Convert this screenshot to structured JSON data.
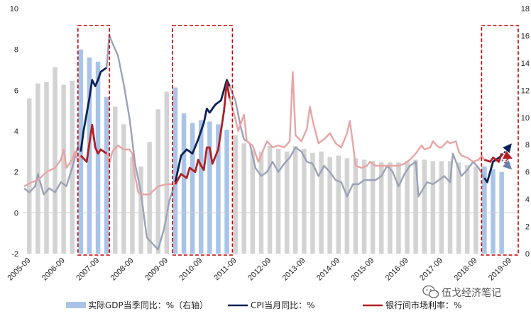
{
  "chart_data": {
    "type": "bar+line",
    "x_labels": [
      "2005-09",
      "2006-09",
      "2007-09",
      "2008-09",
      "2009-09",
      "2010-09",
      "2011-09",
      "2012-09",
      "2013-09",
      "2014-09",
      "2015-09",
      "2016-09",
      "2017-09",
      "2018-09",
      "2019-09"
    ],
    "x_range": [
      2005.6,
      2019.9
    ],
    "y_left": {
      "range": [
        -2,
        10
      ],
      "ticks": [
        -2,
        0,
        2,
        4,
        6,
        8,
        10
      ]
    },
    "y_right": {
      "range": [
        0,
        18
      ],
      "ticks": [
        0,
        2,
        4,
        6,
        8,
        10,
        12,
        14,
        16,
        18
      ]
    },
    "gdp_bars": {
      "name": "实际GDP当季同比：%（右轴）",
      "axis": "right",
      "x": [
        2005.75,
        2006.0,
        2006.25,
        2006.5,
        2006.75,
        2007.0,
        2007.25,
        2007.5,
        2007.75,
        2008.0,
        2008.25,
        2008.5,
        2008.75,
        2009.0,
        2009.25,
        2009.5,
        2009.75,
        2010.0,
        2010.25,
        2010.5,
        2010.75,
        2011.0,
        2011.25,
        2011.5,
        2011.75,
        2012.0,
        2012.25,
        2012.5,
        2012.75,
        2013.0,
        2013.25,
        2013.5,
        2013.75,
        2014.0,
        2014.25,
        2014.5,
        2014.75,
        2015.0,
        2015.25,
        2015.5,
        2015.75,
        2016.0,
        2016.25,
        2016.5,
        2016.75,
        2017.0,
        2017.25,
        2017.5,
        2017.75,
        2018.0,
        2018.25,
        2018.5,
        2018.75,
        2019.0,
        2019.25,
        2019.5
      ],
      "values": [
        11.4,
        12.5,
        12.6,
        13.7,
        12.4,
        12.7,
        15.0,
        14.4,
        14.1,
        11.5,
        10.8,
        9.5,
        7.1,
        6.4,
        8.2,
        10.6,
        11.9,
        12.2,
        10.3,
        9.6,
        9.8,
        9.7,
        9.5,
        9.1,
        8.7,
        8.1,
        7.6,
        7.5,
        7.9,
        7.7,
        7.5,
        7.9,
        7.7,
        7.4,
        7.5,
        7.1,
        7.2,
        7.0,
        7.0,
        6.9,
        6.8,
        6.7,
        6.7,
        6.7,
        6.8,
        6.9,
        6.9,
        6.8,
        6.8,
        6.8,
        6.7,
        6.5,
        6.4,
        6.4,
        6.2,
        6.0
      ]
    },
    "cpi_line": {
      "name": "CPI当月同比：%",
      "axis": "left",
      "points": [
        [
          2005.6,
          1.2
        ],
        [
          2005.75,
          1.0
        ],
        [
          2005.92,
          1.3
        ],
        [
          2006.0,
          1.9
        ],
        [
          2006.17,
          0.9
        ],
        [
          2006.33,
          1.2
        ],
        [
          2006.5,
          1.0
        ],
        [
          2006.67,
          1.5
        ],
        [
          2006.83,
          1.3
        ],
        [
          2007.0,
          2.2
        ],
        [
          2007.17,
          3.3
        ],
        [
          2007.25,
          3.0
        ],
        [
          2007.33,
          4.0
        ],
        [
          2007.5,
          5.6
        ],
        [
          2007.58,
          6.5
        ],
        [
          2007.67,
          6.2
        ],
        [
          2007.75,
          6.5
        ],
        [
          2007.83,
          6.9
        ],
        [
          2008.0,
          7.1
        ],
        [
          2008.08,
          8.7
        ],
        [
          2008.17,
          8.3
        ],
        [
          2008.33,
          7.7
        ],
        [
          2008.5,
          6.3
        ],
        [
          2008.67,
          4.6
        ],
        [
          2008.83,
          2.4
        ],
        [
          2009.0,
          1.0
        ],
        [
          2009.17,
          -1.2
        ],
        [
          2009.33,
          -1.5
        ],
        [
          2009.5,
          -1.8
        ],
        [
          2009.67,
          -0.8
        ],
        [
          2009.83,
          0.6
        ],
        [
          2010.0,
          1.5
        ],
        [
          2010.17,
          2.8
        ],
        [
          2010.33,
          3.1
        ],
        [
          2010.5,
          2.9
        ],
        [
          2010.67,
          3.6
        ],
        [
          2010.83,
          4.4
        ],
        [
          2010.92,
          5.1
        ],
        [
          2011.0,
          4.9
        ],
        [
          2011.17,
          5.3
        ],
        [
          2011.33,
          5.5
        ],
        [
          2011.5,
          6.5
        ],
        [
          2011.58,
          6.2
        ],
        [
          2011.75,
          5.5
        ],
        [
          2011.92,
          4.1
        ],
        [
          2012.0,
          3.6
        ],
        [
          2012.17,
          3.4
        ],
        [
          2012.33,
          2.2
        ],
        [
          2012.5,
          1.8
        ],
        [
          2012.67,
          2.0
        ],
        [
          2012.83,
          2.5
        ],
        [
          2013.0,
          2.0
        ],
        [
          2013.17,
          2.4
        ],
        [
          2013.33,
          2.7
        ],
        [
          2013.5,
          3.2
        ],
        [
          2013.67,
          3.0
        ],
        [
          2013.83,
          2.5
        ],
        [
          2014.0,
          2.4
        ],
        [
          2014.17,
          1.8
        ],
        [
          2014.33,
          2.3
        ],
        [
          2014.5,
          2.0
        ],
        [
          2014.67,
          1.6
        ],
        [
          2014.83,
          1.5
        ],
        [
          2015.0,
          0.8
        ],
        [
          2015.17,
          1.4
        ],
        [
          2015.33,
          1.4
        ],
        [
          2015.5,
          1.6
        ],
        [
          2015.67,
          1.6
        ],
        [
          2015.83,
          1.6
        ],
        [
          2016.0,
          1.8
        ],
        [
          2016.17,
          2.3
        ],
        [
          2016.33,
          2.0
        ],
        [
          2016.5,
          1.3
        ],
        [
          2016.67,
          1.9
        ],
        [
          2016.83,
          2.3
        ],
        [
          2017.0,
          2.5
        ],
        [
          2017.08,
          0.8
        ],
        [
          2017.33,
          1.5
        ],
        [
          2017.5,
          1.4
        ],
        [
          2017.67,
          1.6
        ],
        [
          2017.83,
          1.8
        ],
        [
          2018.0,
          1.5
        ],
        [
          2018.08,
          2.9
        ],
        [
          2018.33,
          1.8
        ],
        [
          2018.5,
          2.1
        ],
        [
          2018.67,
          2.5
        ],
        [
          2018.83,
          2.2
        ],
        [
          2019.0,
          1.7
        ],
        [
          2019.08,
          1.5
        ],
        [
          2019.25,
          2.5
        ],
        [
          2019.42,
          2.7
        ],
        [
          2019.5,
          2.8
        ]
      ]
    },
    "rate_line": {
      "name": "银行间市场利率：%",
      "axis": "left",
      "points": [
        [
          2005.6,
          1.3
        ],
        [
          2005.83,
          1.5
        ],
        [
          2006.0,
          1.6
        ],
        [
          2006.25,
          2.0
        ],
        [
          2006.5,
          2.2
        ],
        [
          2006.67,
          2.6
        ],
        [
          2006.75,
          3.1
        ],
        [
          2006.83,
          2.2
        ],
        [
          2007.0,
          2.6
        ],
        [
          2007.08,
          3.0
        ],
        [
          2007.17,
          2.5
        ],
        [
          2007.25,
          2.8
        ],
        [
          2007.42,
          2.5
        ],
        [
          2007.58,
          4.3
        ],
        [
          2007.67,
          3.2
        ],
        [
          2007.75,
          2.9
        ],
        [
          2007.83,
          3.1
        ],
        [
          2008.0,
          2.9
        ],
        [
          2008.08,
          2.4
        ],
        [
          2008.17,
          3.0
        ],
        [
          2008.33,
          3.3
        ],
        [
          2008.5,
          3.1
        ],
        [
          2008.67,
          3.1
        ],
        [
          2008.75,
          2.9
        ],
        [
          2008.83,
          1.8
        ],
        [
          2008.92,
          1.0
        ],
        [
          2009.0,
          0.9
        ],
        [
          2009.25,
          0.9
        ],
        [
          2009.5,
          1.3
        ],
        [
          2009.75,
          1.4
        ],
        [
          2009.83,
          1.4
        ],
        [
          2010.0,
          1.4
        ],
        [
          2010.17,
          1.9
        ],
        [
          2010.33,
          1.7
        ],
        [
          2010.42,
          2.2
        ],
        [
          2010.58,
          2.0
        ],
        [
          2010.67,
          2.6
        ],
        [
          2010.75,
          2.3
        ],
        [
          2010.83,
          2.1
        ],
        [
          2010.92,
          3.2
        ],
        [
          2011.0,
          3.2
        ],
        [
          2011.08,
          2.4
        ],
        [
          2011.25,
          3.1
        ],
        [
          2011.42,
          5.0
        ],
        [
          2011.5,
          6.4
        ],
        [
          2011.58,
          5.6
        ],
        [
          2011.75,
          4.6
        ],
        [
          2011.83,
          4.0
        ],
        [
          2012.0,
          4.8
        ],
        [
          2012.08,
          3.5
        ],
        [
          2012.25,
          3.3
        ],
        [
          2012.42,
          2.5
        ],
        [
          2012.67,
          3.5
        ],
        [
          2012.83,
          3.2
        ],
        [
          2013.0,
          3.3
        ],
        [
          2013.17,
          3.2
        ],
        [
          2013.33,
          3.5
        ],
        [
          2013.42,
          6.9
        ],
        [
          2013.5,
          3.8
        ],
        [
          2013.67,
          3.5
        ],
        [
          2013.83,
          4.1
        ],
        [
          2013.92,
          5.2
        ],
        [
          2014.0,
          4.5
        ],
        [
          2014.17,
          3.4
        ],
        [
          2014.33,
          3.6
        ],
        [
          2014.5,
          3.9
        ],
        [
          2014.67,
          3.4
        ],
        [
          2014.83,
          3.2
        ],
        [
          2015.0,
          3.9
        ],
        [
          2015.08,
          4.5
        ],
        [
          2015.17,
          3.4
        ],
        [
          2015.25,
          2.3
        ],
        [
          2015.42,
          2.2
        ],
        [
          2015.58,
          2.3
        ],
        [
          2015.67,
          2.5
        ],
        [
          2015.83,
          2.3
        ],
        [
          2016.0,
          2.3
        ],
        [
          2016.25,
          2.3
        ],
        [
          2016.5,
          2.3
        ],
        [
          2016.67,
          2.4
        ],
        [
          2016.83,
          2.6
        ],
        [
          2017.0,
          2.9
        ],
        [
          2017.17,
          3.3
        ],
        [
          2017.25,
          3.1
        ],
        [
          2017.42,
          3.2
        ],
        [
          2017.5,
          3.5
        ],
        [
          2017.67,
          3.2
        ],
        [
          2017.75,
          3.2
        ],
        [
          2017.92,
          3.5
        ],
        [
          2018.0,
          3.4
        ],
        [
          2018.17,
          3.5
        ],
        [
          2018.25,
          3.0
        ],
        [
          2018.33,
          2.8
        ],
        [
          2018.5,
          2.7
        ],
        [
          2018.67,
          2.5
        ],
        [
          2018.83,
          2.6
        ],
        [
          2018.92,
          2.8
        ],
        [
          2019.0,
          2.6
        ],
        [
          2019.17,
          2.5
        ],
        [
          2019.25,
          2.7
        ],
        [
          2019.42,
          2.5
        ],
        [
          2019.5,
          2.9
        ]
      ]
    },
    "highlight_boxes": [
      [
        2007.25,
        2008.0
      ],
      [
        2010.0,
        2011.58
      ],
      [
        2019.0,
        2019.9
      ]
    ],
    "annotations": {
      "question_mark": "?"
    }
  },
  "legend": {
    "gdp": "实际GDP当季同比：%（右轴）",
    "cpi": "CPI当月同比：%",
    "rate": "银行间市场利率：%"
  },
  "watermark": "伍戈经济笔记",
  "colors": {
    "gdp_faded": "#d3d3d3",
    "gdp_highlight": "#a9c4e6",
    "cpi_faded": "#9aa2b8",
    "cpi_highlight": "#0d2356",
    "rate_faded": "#e8a4a4",
    "rate_highlight": "#b01f24",
    "box": "#c00000",
    "axis": "#222222"
  }
}
